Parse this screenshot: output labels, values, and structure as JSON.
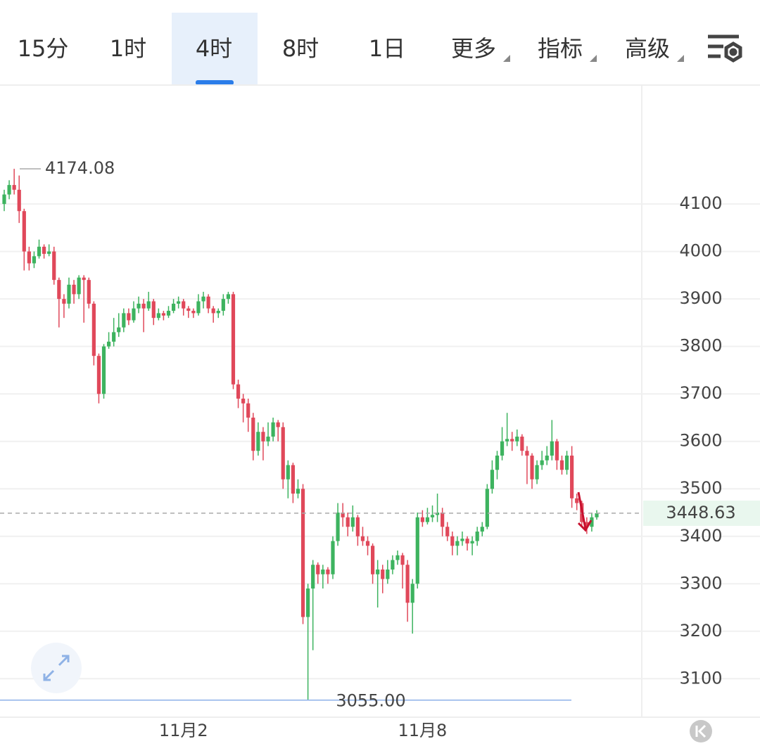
{
  "toolbar": {
    "tabs": [
      "15分",
      "1时",
      "4时",
      "8时",
      "1日",
      "更多",
      "指标",
      "高级"
    ],
    "active": 2
  },
  "chart_data": {
    "type": "candlestick",
    "categories": [
      null,
      null,
      null,
      null,
      null,
      null,
      null,
      null,
      null,
      null,
      null,
      null,
      null,
      null,
      null,
      null,
      null,
      null,
      null,
      null,
      null,
      null,
      null,
      null,
      null,
      null,
      null,
      null,
      null,
      null,
      null,
      null,
      null,
      null,
      null,
      null,
      "11月2",
      null,
      null,
      null,
      null,
      null,
      null,
      null,
      null,
      null,
      null,
      null,
      null,
      null,
      null,
      null,
      null,
      null,
      null,
      null,
      null,
      null,
      null,
      null,
      null,
      null,
      null,
      null,
      null,
      null,
      null,
      null,
      null,
      null,
      null,
      null,
      null,
      null,
      null,
      null,
      null,
      null,
      null,
      null,
      null,
      null,
      null,
      null,
      "11月8",
      null,
      null,
      null,
      null,
      null,
      null,
      null,
      null,
      null,
      null,
      null,
      null,
      null,
      null,
      null,
      null,
      null,
      null,
      null,
      null,
      null,
      null,
      null,
      null,
      null,
      null,
      null,
      null,
      null,
      null,
      null,
      null,
      null,
      null,
      null
    ],
    "open": [
      4100,
      4120,
      4140,
      4130,
      4085,
      4000,
      3975,
      3990,
      4010,
      3995,
      4000,
      3940,
      3900,
      3890,
      3930,
      3910,
      3945,
      3940,
      3890,
      3780,
      3700,
      3800,
      3810,
      3830,
      3840,
      3870,
      3855,
      3880,
      3890,
      3880,
      3895,
      3860,
      3870,
      3865,
      3875,
      3890,
      3895,
      3880,
      3875,
      3870,
      3895,
      3905,
      3880,
      3870,
      3875,
      3900,
      3910,
      3720,
      3690,
      3680,
      3650,
      3580,
      3620,
      3600,
      3610,
      3640,
      3630,
      3520,
      3550,
      3490,
      3500,
      3230,
      3290,
      3340,
      3320,
      3330,
      3320,
      3390,
      3450,
      3440,
      3420,
      3440,
      3400,
      3390,
      3380,
      3320,
      3330,
      3310,
      3330,
      3350,
      3360,
      3340,
      3260,
      3300,
      3440,
      3430,
      3440,
      3445,
      3450,
      3420,
      3400,
      3380,
      3390,
      3395,
      3385,
      3390,
      3410,
      3420,
      3500,
      3540,
      3570,
      3600,
      3605,
      3600,
      3610,
      3580,
      3570,
      3520,
      3550,
      3560,
      3570,
      3600,
      3560,
      3540,
      3570,
      3480,
      3470,
      3430,
      3420,
      3440
    ],
    "high": [
      4130,
      4150,
      4174.08,
      4160,
      4090,
      4010,
      4000,
      4025,
      4015,
      4015,
      4010,
      3945,
      3910,
      3945,
      3940,
      3950,
      3950,
      3945,
      3895,
      3785,
      3805,
      3830,
      3860,
      3870,
      3880,
      3880,
      3895,
      3905,
      3900,
      3915,
      3900,
      3880,
      3875,
      3885,
      3900,
      3905,
      3900,
      3885,
      3880,
      3910,
      3915,
      3910,
      3885,
      3880,
      3910,
      3915,
      3915,
      3730,
      3700,
      3690,
      3660,
      3640,
      3630,
      3640,
      3650,
      3645,
      3640,
      3560,
      3555,
      3520,
      3510,
      3300,
      3350,
      3345,
      3340,
      3335,
      3400,
      3470,
      3470,
      3450,
      3465,
      3445,
      3420,
      3400,
      3385,
      3350,
      3340,
      3350,
      3360,
      3370,
      3365,
      3350,
      3310,
      3450,
      3455,
      3460,
      3465,
      3490,
      3460,
      3430,
      3410,
      3400,
      3410,
      3400,
      3400,
      3420,
      3430,
      3510,
      3560,
      3580,
      3630,
      3660,
      3620,
      3625,
      3615,
      3590,
      3575,
      3560,
      3580,
      3590,
      3645,
      3605,
      3570,
      3580,
      3590,
      3490,
      3475,
      3440,
      3450,
      3455
    ],
    "low": [
      4085,
      4110,
      4120,
      4060,
      3960,
      3960,
      3965,
      3985,
      3985,
      3990,
      3930,
      3840,
      3860,
      3880,
      3890,
      3900,
      3850,
      3880,
      3760,
      3680,
      3690,
      3795,
      3800,
      3820,
      3830,
      3845,
      3850,
      3870,
      3830,
      3875,
      3845,
      3855,
      3855,
      3860,
      3870,
      3880,
      3865,
      3860,
      3860,
      3865,
      3880,
      3870,
      3850,
      3860,
      3865,
      3890,
      3710,
      3670,
      3640,
      3620,
      3560,
      3570,
      3560,
      3590,
      3600,
      3600,
      3500,
      3480,
      3470,
      3480,
      3215,
      3055,
      3160,
      3300,
      3290,
      3300,
      3310,
      3380,
      3420,
      3400,
      3410,
      3380,
      3380,
      3360,
      3300,
      3250,
      3280,
      3300,
      3320,
      3340,
      3290,
      3220,
      3195,
      3290,
      3420,
      3425,
      3430,
      3430,
      3400,
      3390,
      3360,
      3360,
      3380,
      3370,
      3360,
      3380,
      3400,
      3415,
      3490,
      3520,
      3560,
      3590,
      3580,
      3590,
      3570,
      3510,
      3500,
      3510,
      3540,
      3550,
      3560,
      3540,
      3530,
      3530,
      3460,
      3455,
      3420,
      3405,
      3410,
      3435
    ],
    "close": [
      4120,
      4140,
      4130,
      4085,
      4000,
      3975,
      3990,
      4010,
      3995,
      4000,
      3940,
      3900,
      3890,
      3930,
      3910,
      3945,
      3940,
      3890,
      3780,
      3700,
      3800,
      3810,
      3830,
      3840,
      3870,
      3855,
      3880,
      3890,
      3880,
      3895,
      3860,
      3870,
      3865,
      3875,
      3890,
      3895,
      3880,
      3875,
      3870,
      3895,
      3905,
      3880,
      3870,
      3875,
      3900,
      3910,
      3720,
      3690,
      3680,
      3650,
      3580,
      3620,
      3600,
      3610,
      3640,
      3630,
      3520,
      3550,
      3490,
      3500,
      3230,
      3290,
      3340,
      3320,
      3330,
      3320,
      3390,
      3450,
      3440,
      3420,
      3440,
      3400,
      3390,
      3380,
      3320,
      3330,
      3310,
      3330,
      3350,
      3360,
      3340,
      3260,
      3300,
      3440,
      3430,
      3440,
      3445,
      3450,
      3420,
      3400,
      3380,
      3390,
      3395,
      3385,
      3390,
      3410,
      3420,
      3500,
      3540,
      3570,
      3600,
      3605,
      3600,
      3610,
      3580,
      3570,
      3520,
      3550,
      3560,
      3570,
      3600,
      3560,
      3540,
      3570,
      3480,
      3470,
      3430,
      3420,
      3440,
      3448.63
    ],
    "up_color": "#3db35f",
    "down_color": "#e0485a",
    "ylim": [
      3019,
      4349
    ],
    "yticks": [
      3100,
      3200,
      3300,
      3400,
      3500,
      3600,
      3700,
      3800,
      3900,
      4000,
      4100
    ],
    "grid": true,
    "high_marker": 4174.08,
    "low_marker": {
      "value": 3055,
      "label": "3055.00"
    },
    "last_price": 3448.63
  }
}
